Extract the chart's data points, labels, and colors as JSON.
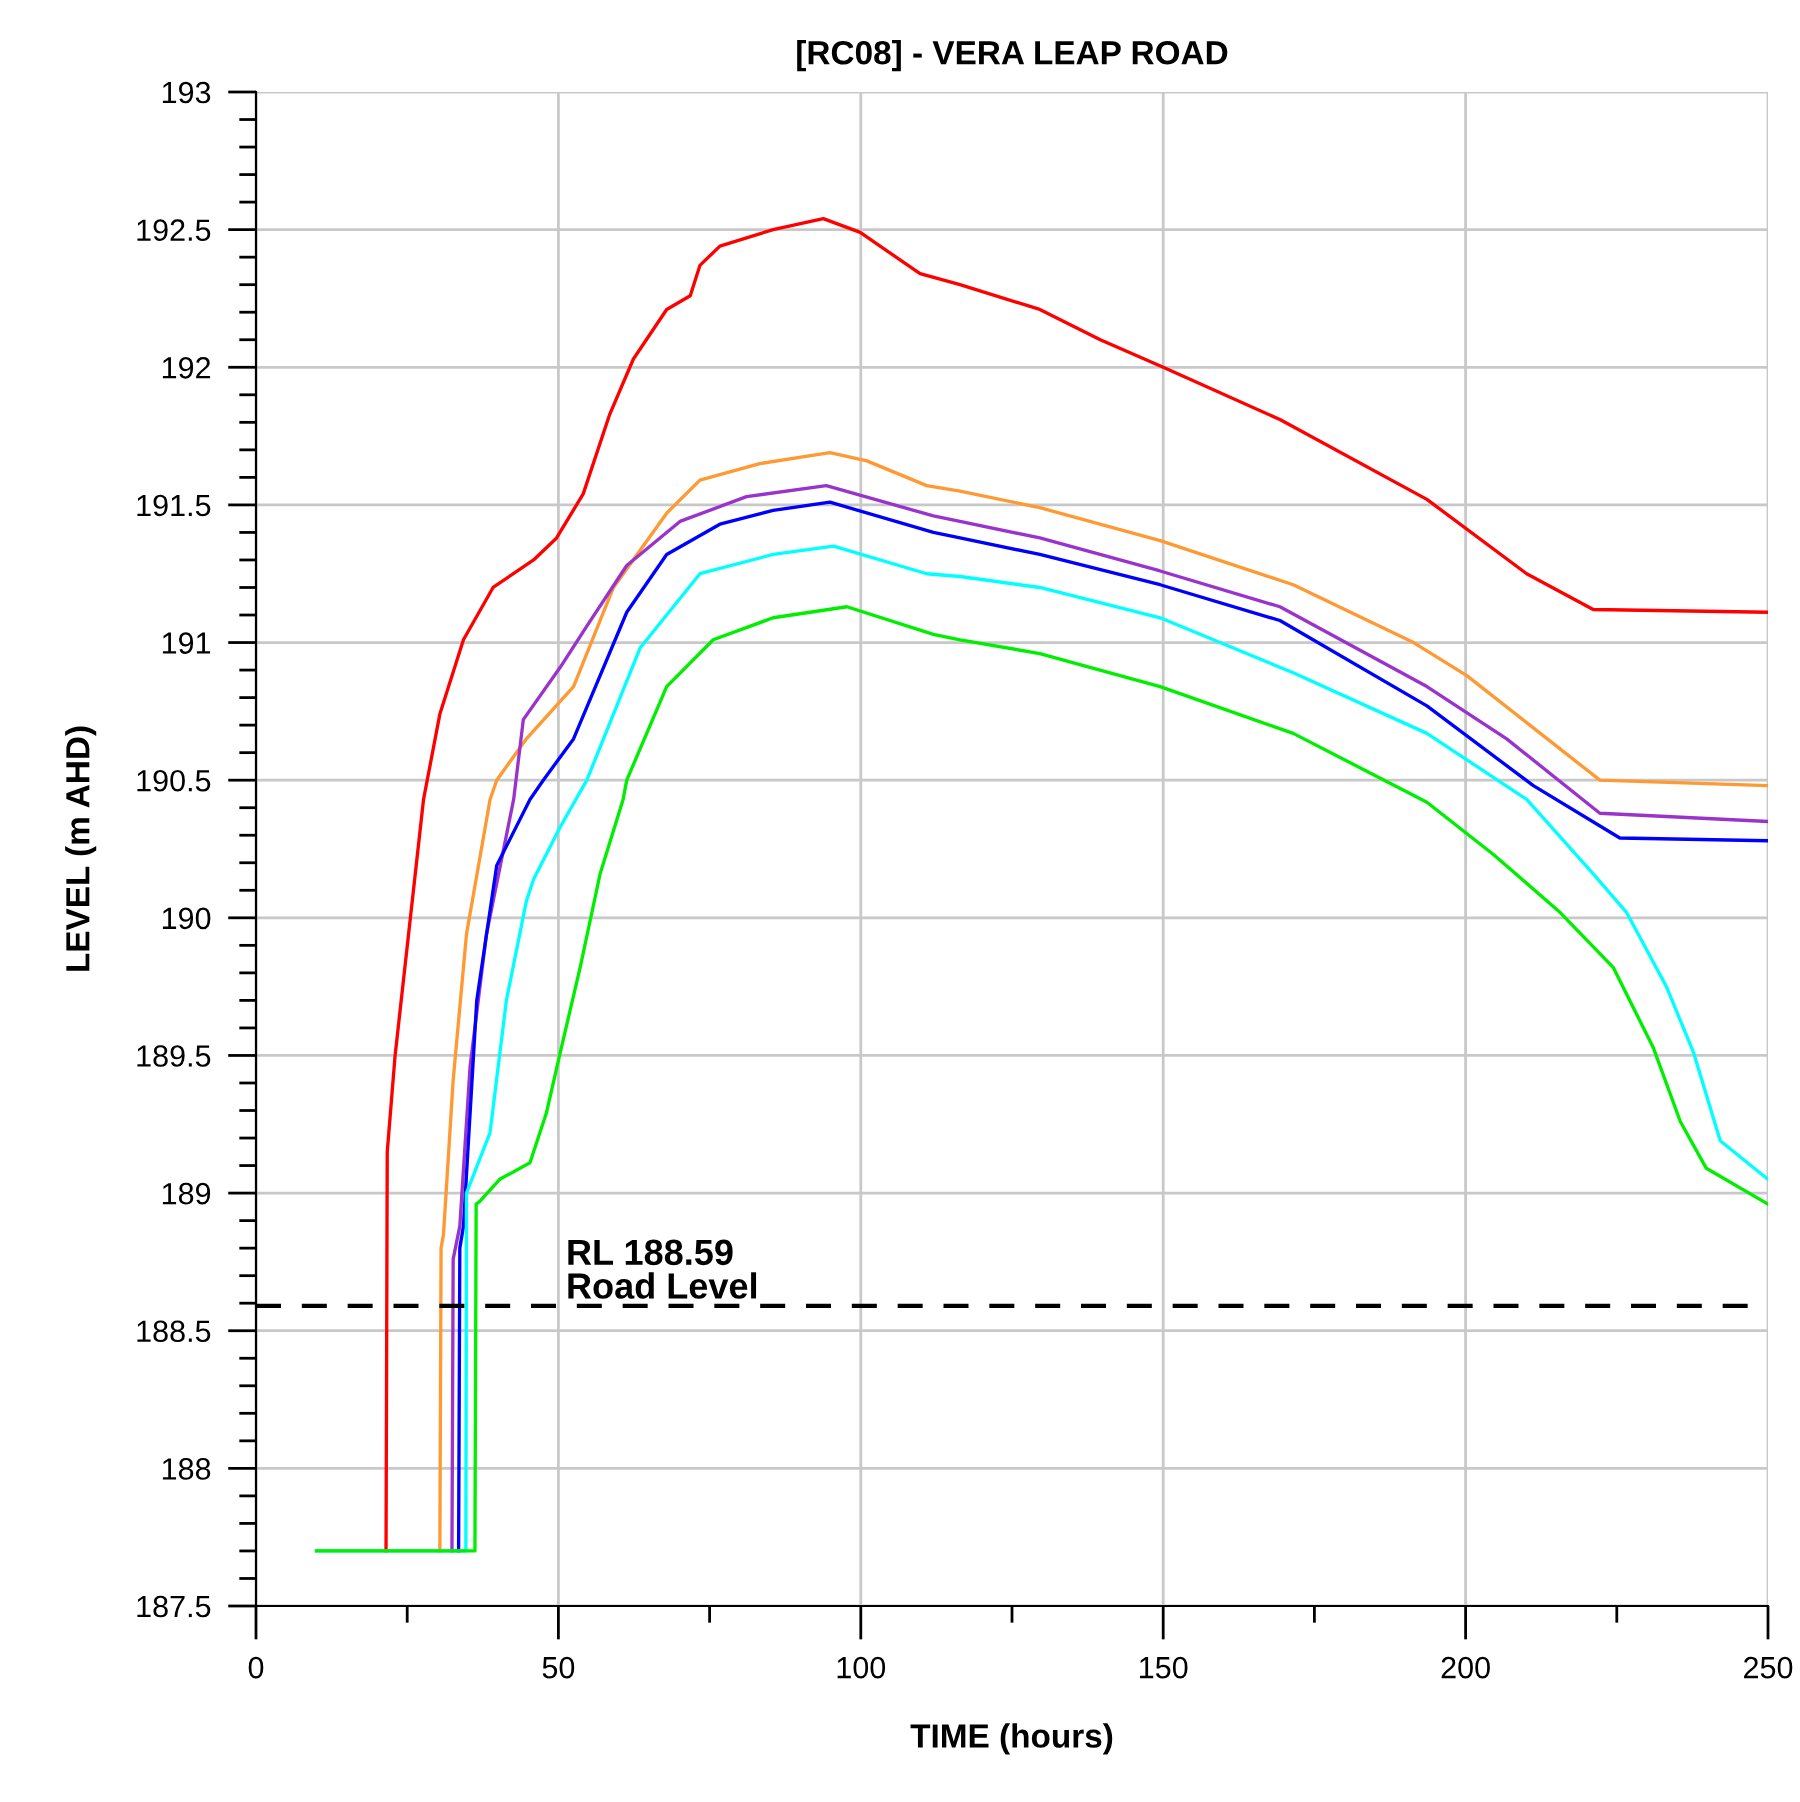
{
  "chart_data": {
    "type": "line",
    "title": "[RC08] - VERA LEAP ROAD",
    "xlabel": "TIME (hours)",
    "ylabel": "LEVEL (m AHD)",
    "xlim": [
      0,
      250
    ],
    "ylim": [
      187.5,
      193
    ],
    "xticks": [
      0,
      {
        "value": 25,
        "label": null
      },
      50,
      {
        "value": 75,
        "label": null
      },
      100,
      {
        "value": 125,
        "label": null
      },
      150,
      {
        "value": 175,
        "label": null
      },
      200,
      {
        "value": 225,
        "label": null
      },
      250
    ],
    "yticks": [
      187.5,
      {
        "value": 187.6,
        "label": null
      },
      {
        "value": 187.7,
        "label": null
      },
      {
        "value": 187.8,
        "label": null
      },
      {
        "value": 187.9,
        "label": null
      },
      188,
      {
        "value": 188.1,
        "label": null
      },
      {
        "value": 188.2,
        "label": null
      },
      {
        "value": 188.3,
        "label": null
      },
      {
        "value": 188.4,
        "label": null
      },
      188.5,
      {
        "value": 188.6,
        "label": null
      },
      {
        "value": 188.7,
        "label": null
      },
      {
        "value": 188.8,
        "label": null
      },
      {
        "value": 188.9,
        "label": null
      },
      189,
      {
        "value": 189.1,
        "label": null
      },
      {
        "value": 189.2,
        "label": null
      },
      {
        "value": 189.3,
        "label": null
      },
      {
        "value": 189.4,
        "label": null
      },
      189.5,
      {
        "value": 189.6,
        "label": null
      },
      {
        "value": 189.7,
        "label": null
      },
      {
        "value": 189.8,
        "label": null
      },
      {
        "value": 189.9,
        "label": null
      },
      190,
      {
        "value": 190.1,
        "label": null
      },
      {
        "value": 190.2,
        "label": null
      },
      {
        "value": 190.3,
        "label": null
      },
      {
        "value": 190.4,
        "label": null
      },
      190.5,
      {
        "value": 190.6,
        "label": null
      },
      {
        "value": 190.7,
        "label": null
      },
      {
        "value": 190.8,
        "label": null
      },
      {
        "value": 190.9,
        "label": null
      },
      191,
      {
        "value": 191.1,
        "label": null
      },
      {
        "value": 191.2,
        "label": null
      },
      {
        "value": 191.3,
        "label": null
      },
      {
        "value": 191.4,
        "label": null
      },
      191.5,
      {
        "value": 191.6,
        "label": null
      },
      {
        "value": 191.7,
        "label": null
      },
      {
        "value": 191.8,
        "label": null
      },
      {
        "value": 191.9,
        "label": null
      },
      192,
      {
        "value": 192.1,
        "label": null
      },
      {
        "value": 192.2,
        "label": null
      },
      {
        "value": 192.3,
        "label": null
      },
      {
        "value": 192.4,
        "label": null
      },
      192.5,
      {
        "value": 192.6,
        "label": null
      },
      {
        "value": 192.7,
        "label": null
      },
      {
        "value": 192.8,
        "label": null
      },
      {
        "value": 192.9,
        "label": null
      },
      193
    ],
    "grid": true,
    "line_style": "solid",
    "ref_lines": [
      {
        "axis": "y",
        "value": 188.59,
        "label": "RL 188.59\nRoad Level",
        "color": "#000000",
        "line_style": "dashed"
      }
    ],
    "series": [
      {
        "color": "#ff0000",
        "x": [
          21.5,
          21.7,
          23,
          27.7,
          30.4,
          34.3,
          39.2,
          45.9,
          49.7,
          54.1,
          58.5,
          62.4,
          67.9,
          71.8,
          73.4,
          76.7,
          85.5,
          93.8,
          99.9,
          109.8,
          116.4,
          129.6,
          139.6,
          150,
          169.3,
          193.6,
          210.1,
          221.1,
          250
        ],
        "values": [
          187.7,
          189.15,
          189.5,
          190.43,
          190.74,
          191.01,
          191.2,
          191.3,
          191.38,
          191.54,
          191.83,
          192.03,
          192.21,
          192.26,
          192.37,
          192.44,
          192.5,
          192.54,
          192.49,
          192.34,
          192.3,
          192.21,
          192.1,
          192.0,
          191.81,
          191.52,
          191.25,
          191.12,
          191.11
        ]
      },
      {
        "color": "#ff9933",
        "x": [
          30.4,
          30.6,
          31,
          32.6,
          34.8,
          38.7,
          39.8,
          44.7,
          52.5,
          59.1,
          67.9,
          73.4,
          83.3,
          94.9,
          101,
          110.9,
          116.4,
          129.6,
          149.5,
          171.5,
          191.4,
          200.2,
          211.2,
          222.2,
          250
        ],
        "values": [
          187.7,
          188.8,
          188.85,
          189.41,
          189.94,
          190.43,
          190.5,
          190.65,
          190.84,
          191.2,
          191.47,
          191.59,
          191.65,
          191.69,
          191.66,
          191.57,
          191.55,
          191.49,
          191.37,
          191.21,
          191.0,
          190.88,
          190.69,
          190.5,
          190.48
        ]
      },
      {
        "color": "#9933cc",
        "x": [
          32.4,
          32.6,
          33.7,
          35.4,
          38.1,
          42.6,
          44.2,
          50.3,
          54.7,
          61.3,
          70.1,
          81.1,
          94.3,
          112,
          116.4,
          129.6,
          149.5,
          169.3,
          193.6,
          206.8,
          222.2,
          250
        ],
        "values": [
          187.7,
          188.76,
          188.88,
          189.46,
          189.94,
          190.43,
          190.72,
          190.91,
          191.06,
          191.28,
          191.44,
          191.53,
          191.57,
          191.46,
          191.44,
          191.38,
          191.26,
          191.13,
          190.84,
          190.65,
          190.38,
          190.35
        ]
      },
      {
        "color": "#0000ff",
        "x": [
          33.5,
          33.7,
          34.3,
          36.5,
          39.8,
          45.3,
          47.5,
          52.5,
          61.3,
          67.9,
          76.7,
          85.5,
          94.9,
          112,
          116.4,
          129.6,
          149.5,
          169.3,
          193.6,
          211.2,
          225.5,
          250
        ],
        "values": [
          187.7,
          188.8,
          188.88,
          189.7,
          190.19,
          190.43,
          190.5,
          190.65,
          191.11,
          191.32,
          191.43,
          191.48,
          191.51,
          191.4,
          191.38,
          191.32,
          191.21,
          191.08,
          190.77,
          190.48,
          190.29,
          190.28
        ]
      },
      {
        "color": "#00ffff",
        "x": [
          10,
          34.7,
          34.8,
          38.7,
          41.4,
          44.7,
          45.9,
          50.3,
          54.7,
          63.5,
          73.4,
          85.5,
          95.5,
          110.9,
          116.4,
          129.6,
          149.5,
          171.5,
          193.6,
          210.1,
          221.1,
          226.6,
          233.2,
          237.7,
          242.1,
          250
        ],
        "values": [
          187.7,
          187.7,
          189.0,
          189.22,
          189.7,
          190.06,
          190.14,
          190.33,
          190.5,
          190.98,
          191.25,
          191.32,
          191.35,
          191.25,
          191.24,
          191.2,
          191.09,
          190.89,
          190.67,
          190.43,
          190.16,
          190.02,
          189.75,
          189.51,
          189.19,
          189.05
        ]
      },
      {
        "color": "#00ee00",
        "x": [
          10,
          36.2,
          36.4,
          37,
          40.3,
          45.3,
          48,
          50.3,
          53.6,
          56.9,
          60.7,
          61.3,
          67.9,
          75.6,
          85.5,
          97.7,
          112,
          116.4,
          129.6,
          149.5,
          171.5,
          193.6,
          204.6,
          215.6,
          224.4,
          231,
          235.5,
          239.8,
          250
        ],
        "values": [
          187.7,
          187.7,
          188.96,
          188.97,
          189.05,
          189.11,
          189.29,
          189.51,
          189.82,
          190.16,
          190.43,
          190.5,
          190.84,
          191.01,
          191.09,
          191.13,
          191.03,
          191.01,
          190.96,
          190.84,
          190.67,
          190.42,
          190.23,
          190.02,
          189.82,
          189.53,
          189.26,
          189.09,
          188.96
        ]
      }
    ]
  }
}
